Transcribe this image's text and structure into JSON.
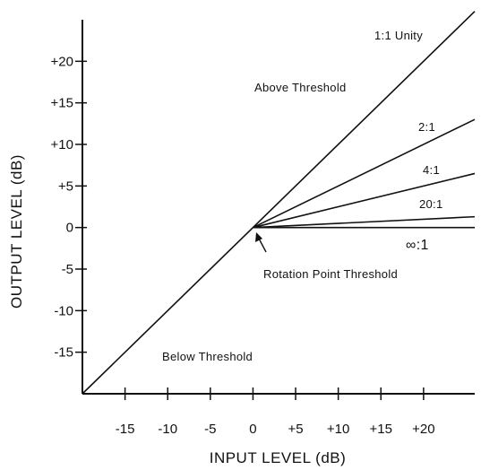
{
  "chart_data": {
    "type": "line",
    "xlabel": "INPUT LEVEL (dB)",
    "ylabel": "OUTPUT LEVEL (dB)",
    "xlim": [
      -20,
      26
    ],
    "ylim": [
      -20,
      25
    ],
    "xticks": [
      {
        "value": -15,
        "label": "-15"
      },
      {
        "value": -10,
        "label": "-10"
      },
      {
        "value": -5,
        "label": "-5"
      },
      {
        "value": 0,
        "label": "0"
      },
      {
        "value": 5,
        "label": "+5"
      },
      {
        "value": 10,
        "label": "+10"
      },
      {
        "value": 15,
        "label": "+15"
      },
      {
        "value": 20,
        "label": "+20"
      }
    ],
    "yticks": [
      {
        "value": 20,
        "label": "+20"
      },
      {
        "value": 15,
        "label": "+15"
      },
      {
        "value": 10,
        "label": "+10"
      },
      {
        "value": 5,
        "label": "+5"
      },
      {
        "value": 0,
        "label": "0"
      },
      {
        "value": -5,
        "label": "-5"
      },
      {
        "value": -10,
        "label": "-10"
      },
      {
        "value": -15,
        "label": "-15"
      }
    ],
    "series": [
      {
        "name": "1:1 Unity",
        "ratio": 1,
        "points": [
          [
            -20,
            -20
          ],
          [
            26,
            26
          ]
        ]
      },
      {
        "name": "2:1",
        "ratio": 2,
        "points": [
          [
            0,
            0
          ],
          [
            26,
            13
          ]
        ]
      },
      {
        "name": "4:1",
        "ratio": 4,
        "points": [
          [
            0,
            0
          ],
          [
            26,
            6.5
          ]
        ]
      },
      {
        "name": "20:1",
        "ratio": 20,
        "points": [
          [
            0,
            0
          ],
          [
            26,
            1.3
          ]
        ]
      },
      {
        "name": "∞:1",
        "ratio": "infinity",
        "points": [
          [
            0,
            0
          ],
          [
            26,
            0
          ]
        ]
      }
    ],
    "annotations": [
      {
        "id": "above",
        "text": "Above Threshold"
      },
      {
        "id": "below",
        "text": "Below Threshold"
      },
      {
        "id": "rotation",
        "text": "Rotation Point Threshold"
      }
    ],
    "grid": false,
    "legend": "none"
  }
}
